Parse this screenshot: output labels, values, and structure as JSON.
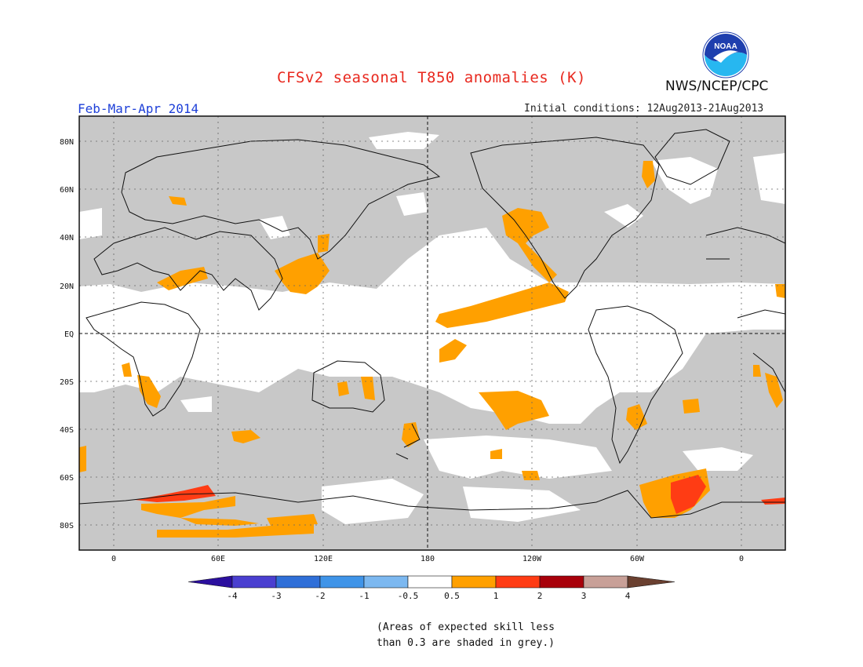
{
  "title": "CFSv2 seasonal T850 anomalies (K)",
  "season": "Feb-Mar-Apr 2014",
  "agency": "NWS/NCEP/CPC",
  "initial_conditions": "Initial conditions: 12Aug2013-21Aug2013",
  "logo_text": "NOAA",
  "map": {
    "lat_labels": [
      "80N",
      "60N",
      "40N",
      "20N",
      "EQ",
      "20S",
      "40S",
      "60S",
      "80S"
    ],
    "lon_labels": [
      "0",
      "60E",
      "120E",
      "180",
      "120W",
      "60W",
      "0"
    ]
  },
  "legend": {
    "ticks": [
      "-4",
      "-3",
      "-2",
      "-1",
      "-0.5",
      "0.5",
      "1",
      "2",
      "3",
      "4"
    ],
    "colors": [
      "#2b0f9e",
      "#4a3fd0",
      "#2f6fd8",
      "#3f94e8",
      "#7cb8f0",
      "#ffffff",
      "#ffa000",
      "#ff3c14",
      "#a8000a",
      "#c8a098",
      "#6a4030"
    ]
  },
  "note_lines": [
    "(Areas of expected skill less",
    "than 0.3 are shaded in grey.)"
  ],
  "colors": {
    "grey": "#c8c8c8",
    "orange": "#ffa000",
    "red": "#ff3c14",
    "title": "#e8281e",
    "season": "#1d3fd8"
  }
}
